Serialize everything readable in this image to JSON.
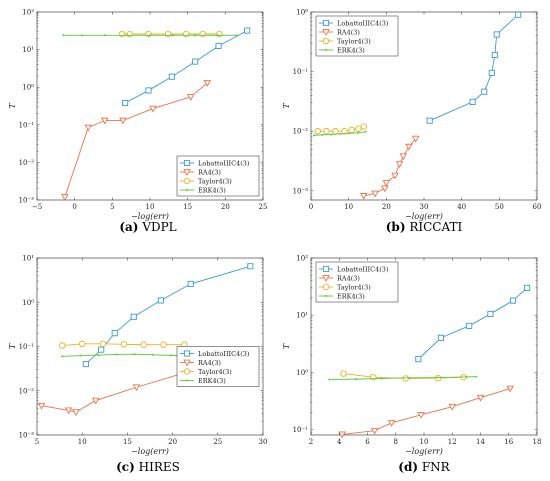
{
  "colors": {
    "LobattoIIIC4(3)": "#3a9ad9",
    "RA4(3)": "#e8754a",
    "Taylor4(3)": "#edb120",
    "ERK4(3)": "#5cc83c"
  },
  "captions": [
    {
      "tag": "(a)",
      "name": "VDPL"
    },
    {
      "tag": "(b)",
      "name": "RICCATI"
    },
    {
      "tag": "(c)",
      "name": "HIRES"
    },
    {
      "tag": "(d)",
      "name": "FNR"
    }
  ],
  "chart_data": [
    {
      "type": "line",
      "title": "",
      "xlabel": "−log(err)",
      "ylabel": "T",
      "xscale": "linear",
      "yscale": "log",
      "xlim": [
        -5,
        25
      ],
      "ylim": [
        0.001,
        100
      ],
      "xticks": [
        -5,
        0,
        5,
        10,
        15,
        20,
        25
      ],
      "yticks": [
        0.001,
        0.01,
        0.1,
        1,
        10,
        100
      ],
      "yticklabels": [
        "10⁻³",
        "10⁻²",
        "10⁻¹",
        "10⁰",
        "10¹",
        "10²"
      ],
      "legend_position": "bottom-right",
      "series": [
        {
          "name": "LobattoIIIC4(3)",
          "marker": "square",
          "x": [
            6.7,
            9.8,
            12.9,
            16.0,
            19.1,
            22.9
          ],
          "y": [
            0.38,
            0.82,
            1.9,
            4.8,
            12.5,
            32
          ]
        },
        {
          "name": "RA4(3)",
          "marker": "triangle",
          "x": [
            -1.3,
            1.8,
            4.0,
            6.4,
            10.4,
            15.4,
            17.6
          ],
          "y": [
            0.0012,
            0.085,
            0.13,
            0.13,
            0.27,
            0.55,
            1.3
          ]
        },
        {
          "name": "Taylor4(3)",
          "marker": "circle",
          "x": [
            6.3,
            7.3,
            9.8,
            12.4,
            14.8,
            17.0,
            19.2
          ],
          "y": [
            26,
            26,
            26,
            26,
            26,
            26,
            26
          ]
        },
        {
          "name": "ERK4(3)",
          "marker": "dot",
          "x": [
            -1.5,
            1.0,
            4.0,
            7.0,
            10.0,
            13.0,
            16.0,
            19.0,
            21.5
          ],
          "y": [
            24,
            24,
            24,
            24,
            24,
            24,
            24,
            24,
            24
          ]
        }
      ]
    },
    {
      "type": "line",
      "title": "",
      "xlabel": "−log(err)",
      "ylabel": "T",
      "xscale": "linear",
      "yscale": "log",
      "xlim": [
        0,
        60
      ],
      "ylim": [
        0.0007,
        1
      ],
      "xticks": [
        0,
        10,
        20,
        30,
        40,
        50,
        60
      ],
      "yticks": [
        0.001,
        0.01,
        0.1,
        1
      ],
      "yticklabels": [
        "10⁻³",
        "10⁻²",
        "10⁻¹",
        "10⁰"
      ],
      "legend_position": "top-left",
      "series": [
        {
          "name": "LobattoIIIC4(3)",
          "marker": "square",
          "x": [
            31.5,
            42.9,
            46.0,
            48.0,
            48.8,
            49.3,
            55.0
          ],
          "y": [
            0.015,
            0.031,
            0.046,
            0.095,
            0.19,
            0.42,
            0.9
          ]
        },
        {
          "name": "RA4(3)",
          "marker": "triangle",
          "x": [
            14.0,
            17.0,
            19.6,
            20.0,
            22.3,
            23.5,
            24.5,
            26.0,
            27.8
          ],
          "y": [
            0.00082,
            0.0009,
            0.0011,
            0.00135,
            0.0018,
            0.0028,
            0.0038,
            0.0055,
            0.0075
          ]
        },
        {
          "name": "Taylor4(3)",
          "marker": "circle",
          "x": [
            1.8,
            4.1,
            6.5,
            8.9,
            10.8,
            12.6,
            14.0
          ],
          "y": [
            0.01,
            0.01,
            0.01,
            0.01,
            0.0105,
            0.011,
            0.012
          ]
        },
        {
          "name": "ERK4(3)",
          "marker": "dot",
          "x": [
            0.8,
            3.0,
            5.4,
            7.8,
            10.1,
            12.5,
            14.5
          ],
          "y": [
            0.0085,
            0.0087,
            0.0088,
            0.009,
            0.0092,
            0.0094,
            0.0098
          ]
        }
      ]
    },
    {
      "type": "line",
      "title": "",
      "xlabel": "−log(err)",
      "ylabel": "T",
      "xscale": "linear",
      "yscale": "log",
      "xlim": [
        5,
        30
      ],
      "ylim": [
        0.001,
        10
      ],
      "xticks": [
        5,
        10,
        15,
        20,
        25,
        30
      ],
      "yticks": [
        0.001,
        0.01,
        0.1,
        1,
        10
      ],
      "yticklabels": [
        "10⁻³",
        "10⁻²",
        "10⁻¹",
        "10⁰",
        "10¹"
      ],
      "legend_position": "center-right",
      "series": [
        {
          "name": "LobattoIIIC4(3)",
          "marker": "square",
          "x": [
            10.4,
            12.1,
            13.6,
            15.7,
            18.7,
            22.0,
            28.6
          ],
          "y": [
            0.04,
            0.085,
            0.2,
            0.47,
            1.1,
            2.6,
            6.5
          ]
        },
        {
          "name": "RA4(3)",
          "marker": "triangle",
          "x": [
            5.5,
            8.5,
            9.3,
            11.5,
            16.0,
            21.2,
            21.7
          ],
          "y": [
            0.0046,
            0.0036,
            0.0033,
            0.006,
            0.012,
            0.025,
            0.05
          ]
        },
        {
          "name": "Taylor4(3)",
          "marker": "circle",
          "x": [
            7.8,
            10.0,
            12.3,
            14.6,
            16.8,
            19.0,
            21.3
          ],
          "y": [
            0.105,
            0.115,
            0.115,
            0.112,
            0.11,
            0.11,
            0.11
          ]
        },
        {
          "name": "ERK4(3)",
          "marker": "dot",
          "x": [
            7.8,
            9.8,
            11.8,
            13.8,
            15.8,
            17.8,
            19.8,
            21.8,
            23.3
          ],
          "y": [
            0.06,
            0.062,
            0.064,
            0.066,
            0.067,
            0.065,
            0.063,
            0.062,
            0.065
          ]
        }
      ]
    },
    {
      "type": "line",
      "title": "",
      "xlabel": "−log(err)",
      "ylabel": "T",
      "xscale": "linear",
      "yscale": "log",
      "xlim": [
        2,
        18
      ],
      "ylim": [
        0.08,
        100
      ],
      "xticks": [
        2,
        4,
        6,
        8,
        10,
        12,
        14,
        16,
        18
      ],
      "yticks": [
        0.1,
        1,
        10,
        100
      ],
      "yticklabels": [
        "10⁻¹",
        "10⁰",
        "10¹",
        "10²"
      ],
      "legend_position": "top-left",
      "series": [
        {
          "name": "LobattoIIIC4(3)",
          "marker": "square",
          "x": [
            9.6,
            11.2,
            13.2,
            14.7,
            16.3,
            17.3
          ],
          "y": [
            1.7,
            4.0,
            6.5,
            10.5,
            18.0,
            30.0
          ]
        },
        {
          "name": "RA4(3)",
          "marker": "triangle",
          "x": [
            4.2,
            6.5,
            7.7,
            9.8,
            12.0,
            14.0,
            16.1
          ],
          "y": [
            0.082,
            0.095,
            0.13,
            0.18,
            0.25,
            0.36,
            0.52
          ]
        },
        {
          "name": "Taylor4(3)",
          "marker": "circle",
          "x": [
            4.3,
            6.4,
            8.7,
            11.0,
            12.8
          ],
          "y": [
            0.95,
            0.82,
            0.78,
            0.79,
            0.82
          ]
        },
        {
          "name": "ERK4(3)",
          "marker": "dot",
          "x": [
            3.3,
            5.2,
            7.0,
            9.0,
            11.0,
            13.0,
            13.7
          ],
          "y": [
            0.75,
            0.76,
            0.78,
            0.8,
            0.81,
            0.83,
            0.84
          ]
        }
      ]
    }
  ]
}
